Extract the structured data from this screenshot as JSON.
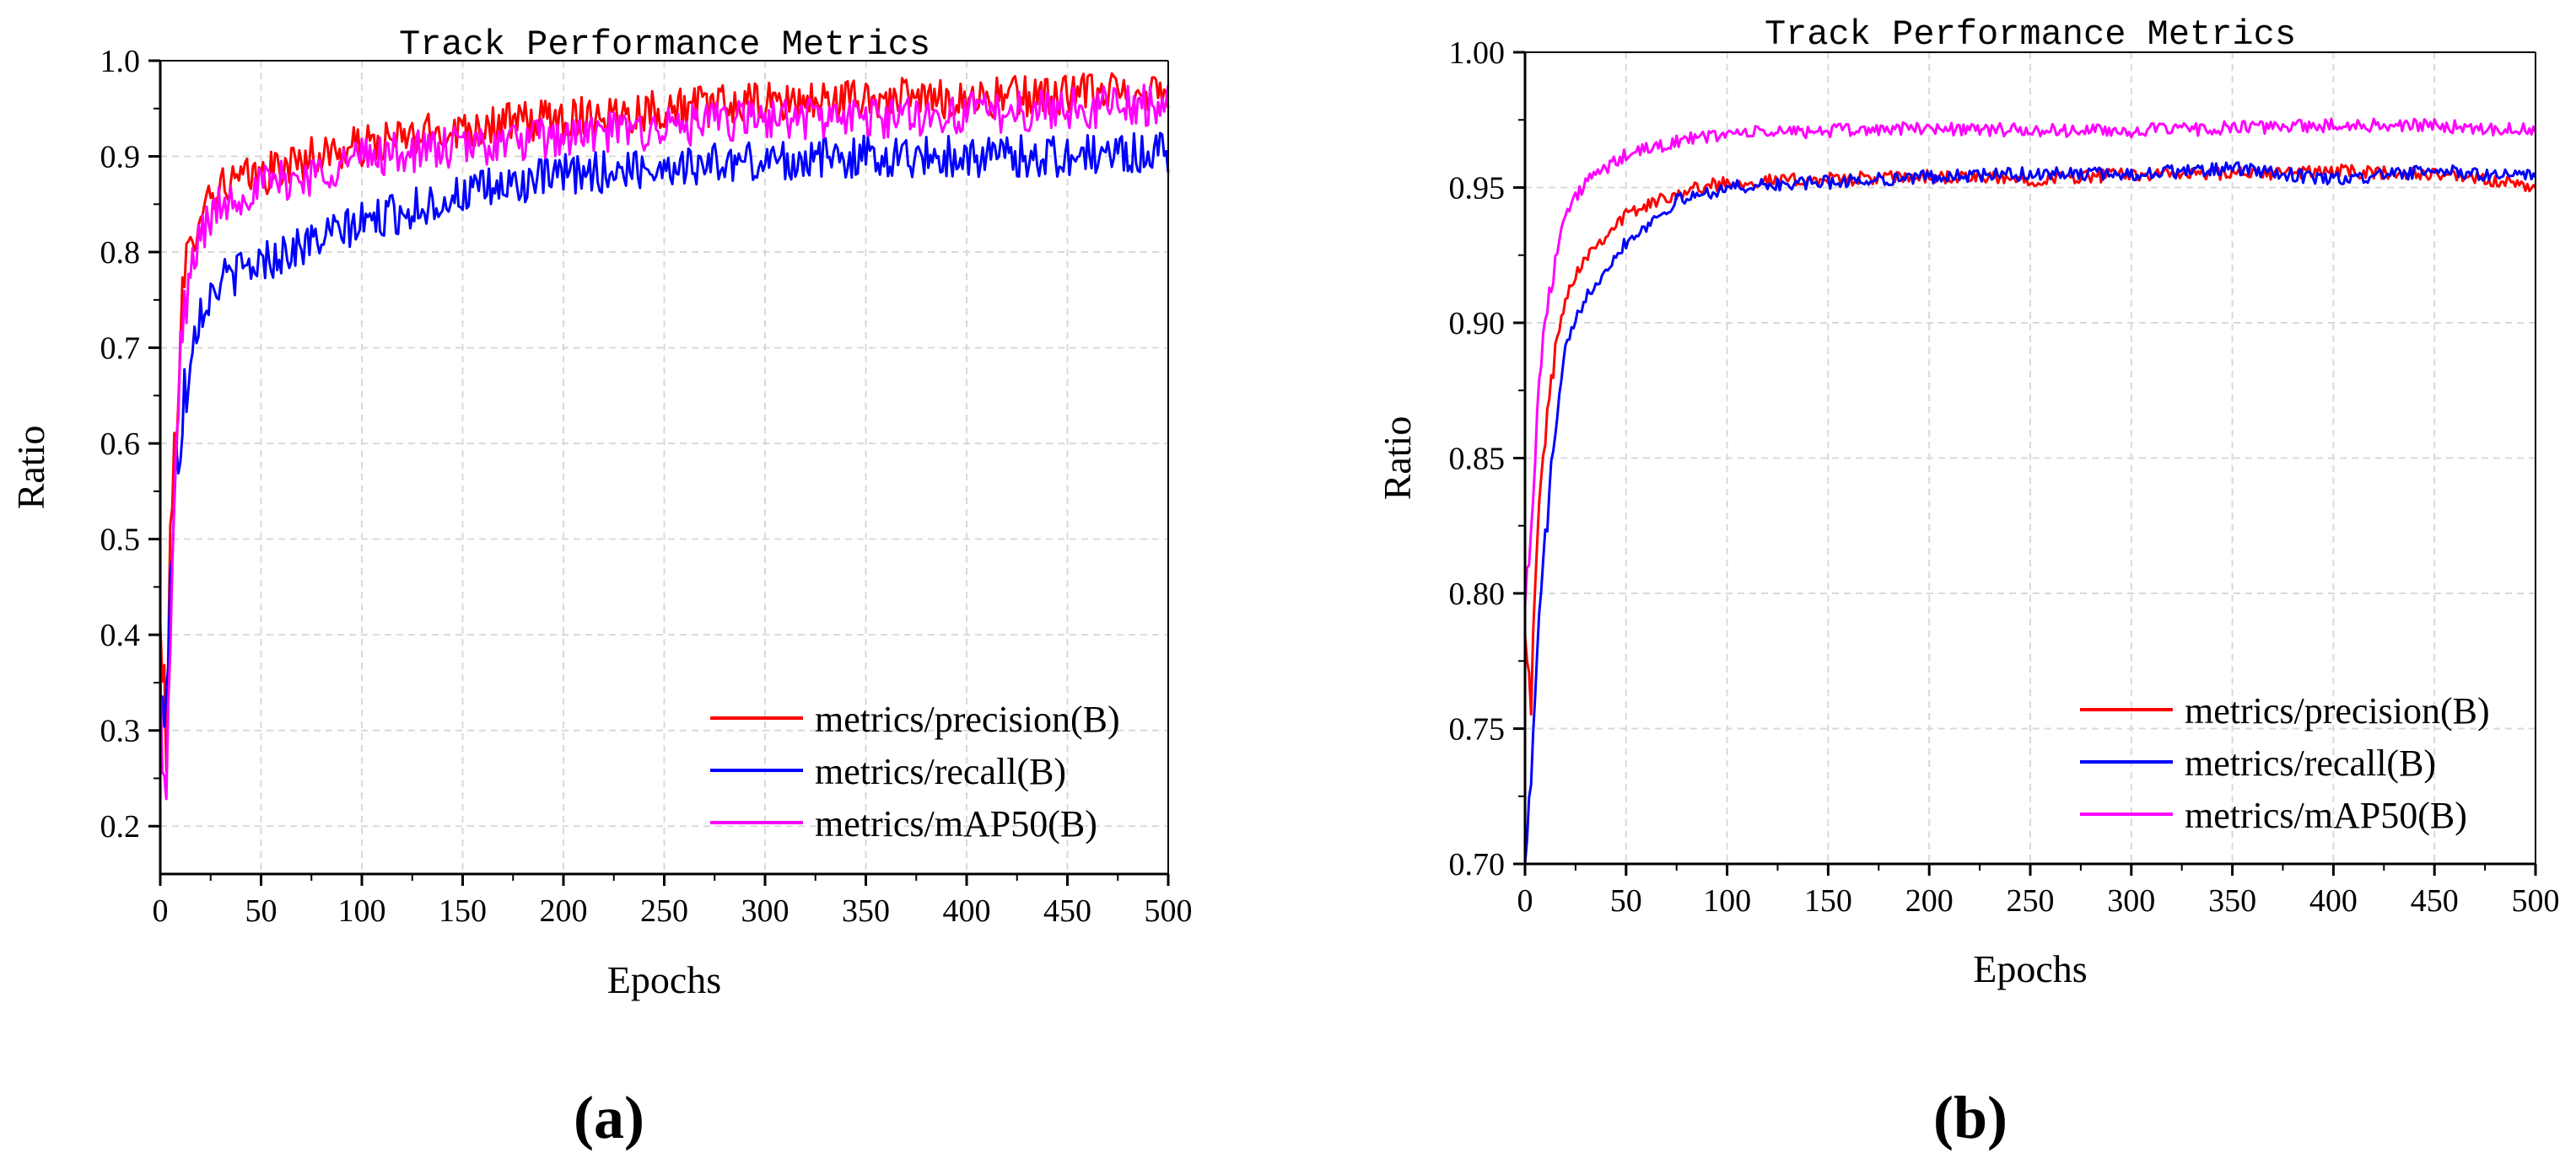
{
  "chart_data": [
    {
      "type": "line",
      "panel": "a",
      "title": "Track Performance Metrics",
      "xlabel": "Epochs",
      "ylabel": "Ratio",
      "xlim": [
        0,
        500
      ],
      "ylim": [
        0.15,
        1.0
      ],
      "xticks": [
        0,
        50,
        100,
        150,
        200,
        250,
        300,
        350,
        400,
        450,
        500
      ],
      "yticks": [
        0.2,
        0.3,
        0.4,
        0.5,
        0.6,
        0.7,
        0.8,
        0.9,
        1.0
      ],
      "ytick_labels": [
        "0.2",
        "0.3",
        "0.4",
        "0.5",
        "0.6",
        "0.7",
        "0.8",
        "0.9",
        "1.0"
      ],
      "grid": true,
      "legend_position": "bottom-right",
      "noise": 0.022,
      "series": [
        {
          "name": "metrics/precision(B)",
          "color": "#ff0000",
          "x": [
            0,
            3,
            6,
            10,
            15,
            20,
            30,
            50,
            75,
            100,
            150,
            200,
            250,
            300,
            350,
            400,
            450,
            500
          ],
          "values": [
            0.4,
            0.3,
            0.55,
            0.72,
            0.8,
            0.85,
            0.87,
            0.88,
            0.9,
            0.91,
            0.93,
            0.94,
            0.95,
            0.955,
            0.96,
            0.96,
            0.965,
            0.97
          ]
        },
        {
          "name": "metrics/recall(B)",
          "color": "#0000ff",
          "x": [
            0,
            3,
            6,
            10,
            15,
            20,
            30,
            50,
            75,
            100,
            150,
            200,
            250,
            300,
            350,
            400,
            450,
            500
          ],
          "values": [
            0.3,
            0.35,
            0.5,
            0.62,
            0.7,
            0.74,
            0.77,
            0.79,
            0.81,
            0.83,
            0.86,
            0.88,
            0.89,
            0.895,
            0.9,
            0.9,
            0.9,
            0.905
          ]
        },
        {
          "name": "metrics/mAP50(B)",
          "color": "#ff00ff",
          "x": [
            0,
            3,
            6,
            10,
            15,
            20,
            30,
            50,
            75,
            100,
            150,
            200,
            250,
            300,
            350,
            400,
            450,
            500
          ],
          "values": [
            0.35,
            0.2,
            0.5,
            0.68,
            0.78,
            0.82,
            0.85,
            0.87,
            0.88,
            0.9,
            0.91,
            0.92,
            0.93,
            0.94,
            0.94,
            0.945,
            0.95,
            0.955
          ]
        }
      ]
    },
    {
      "type": "line",
      "panel": "b",
      "title": "Track Performance Metrics",
      "xlabel": "Epochs",
      "ylabel": "Ratio",
      "xlim": [
        0,
        500
      ],
      "ylim": [
        0.7,
        1.0
      ],
      "xticks": [
        0,
        50,
        100,
        150,
        200,
        250,
        300,
        350,
        400,
        450,
        500
      ],
      "yticks": [
        0.7,
        0.75,
        0.8,
        0.85,
        0.9,
        0.95,
        1.0
      ],
      "ytick_labels": [
        "0.70",
        "0.75",
        "0.80",
        "0.85",
        "0.90",
        "0.95",
        "1.00"
      ],
      "grid": true,
      "legend_position": "bottom-right",
      "noise": 0.0025,
      "series": [
        {
          "name": "metrics/precision(B)",
          "color": "#ff0000",
          "x": [
            0,
            3,
            6,
            10,
            15,
            20,
            30,
            50,
            75,
            100,
            150,
            200,
            250,
            300,
            350,
            400,
            450,
            500
          ],
          "values": [
            0.79,
            0.76,
            0.82,
            0.86,
            0.89,
            0.91,
            0.925,
            0.94,
            0.948,
            0.952,
            0.953,
            0.954,
            0.953,
            0.955,
            0.955,
            0.956,
            0.955,
            0.95
          ]
        },
        {
          "name": "metrics/recall(B)",
          "color": "#0000ff",
          "x": [
            0,
            3,
            6,
            10,
            15,
            20,
            30,
            50,
            75,
            100,
            150,
            200,
            250,
            300,
            350,
            400,
            450,
            500
          ],
          "values": [
            0.7,
            0.73,
            0.78,
            0.82,
            0.86,
            0.89,
            0.91,
            0.93,
            0.945,
            0.95,
            0.952,
            0.954,
            0.955,
            0.955,
            0.957,
            0.953,
            0.956,
            0.954
          ]
        },
        {
          "name": "metrics/mAP50(B)",
          "color": "#ff00ff",
          "x": [
            0,
            3,
            6,
            10,
            15,
            20,
            30,
            50,
            75,
            100,
            150,
            200,
            250,
            300,
            350,
            400,
            450,
            500
          ],
          "values": [
            0.8,
            0.82,
            0.87,
            0.9,
            0.925,
            0.94,
            0.952,
            0.962,
            0.967,
            0.97,
            0.971,
            0.972,
            0.971,
            0.971,
            0.972,
            0.973,
            0.973,
            0.971
          ]
        }
      ]
    }
  ],
  "captions": {
    "a": "(a)",
    "b": "(b)"
  }
}
